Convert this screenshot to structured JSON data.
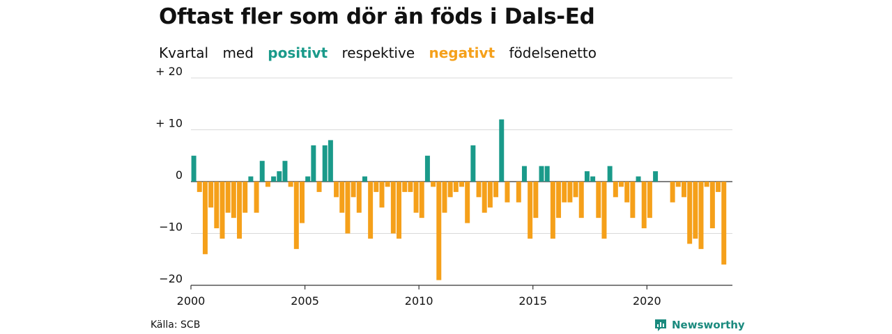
{
  "title": "Oftast fler som dör än föds i Dals-Ed",
  "subtitle": {
    "w1": "Kvartal",
    "w2": "med",
    "positive": "positivt",
    "w3": "respektive",
    "negative": "negativt",
    "w4": "födelsenetto"
  },
  "source": "Källa: SCB",
  "brand": "Newsworthy",
  "colors": {
    "positive": "#1a9a8a",
    "negative": "#f5a01a",
    "grid": "#d9d9d9",
    "axis": "#333333"
  },
  "chart_data": {
    "type": "bar",
    "x_start": 2000.0,
    "x_step": 0.25,
    "xlim": [
      2000,
      2023.75
    ],
    "ylim": [
      -20,
      20
    ],
    "yticks": [
      {
        "value": 20,
        "label": "+ 20"
      },
      {
        "value": 10,
        "label": "+ 10"
      },
      {
        "value": 0,
        "label": "0"
      },
      {
        "value": -10,
        "label": "−10"
      },
      {
        "value": -20,
        "label": "−20"
      }
    ],
    "xticks": [
      {
        "value": 2000,
        "label": "2000"
      },
      {
        "value": 2005,
        "label": "2005"
      },
      {
        "value": 2010,
        "label": "2010"
      },
      {
        "value": 2015,
        "label": "2015"
      },
      {
        "value": 2020,
        "label": "2020"
      }
    ],
    "values": [
      5,
      -2,
      -14,
      -5,
      -9,
      -11,
      -6,
      -7,
      -11,
      -6,
      1,
      -6,
      4,
      -1,
      1,
      2,
      4,
      -1,
      -13,
      -8,
      1,
      7,
      -2,
      7,
      8,
      -3,
      -6,
      -10,
      -3,
      -6,
      1,
      -11,
      -2,
      -5,
      -1,
      -10,
      -11,
      -2,
      -2,
      -6,
      -7,
      5,
      -1,
      -19,
      -6,
      -3,
      -2,
      -1,
      -8,
      7,
      -3,
      -6,
      -5,
      -3,
      12,
      -4,
      0,
      -4,
      3,
      -11,
      -7,
      3,
      3,
      -11,
      -7,
      -4,
      -4,
      -3,
      -7,
      2,
      1,
      -7,
      -11,
      3,
      -3,
      -1,
      -4,
      -7,
      1,
      -9,
      -7,
      2,
      0,
      0,
      -4,
      -1,
      -3,
      -12,
      -11,
      -13,
      -1,
      -9,
      -2,
      -16
    ]
  }
}
